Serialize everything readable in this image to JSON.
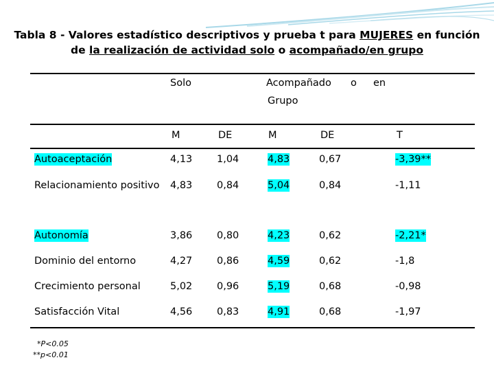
{
  "title": {
    "prefix": "Tabla 8 - Valores estadístico descriptivos y prueba t para ",
    "women": "MUJERES",
    "mid": " en función de ",
    "activity": "la realización de actividad solo",
    "o": " o ",
    "accompanied": "acompañado/en grupo"
  },
  "header": {
    "solo": "Solo",
    "acompanado": "Acompañado",
    "o": "o",
    "en": "en",
    "grupo": "Grupo",
    "cols": [
      "M",
      "DE",
      "M",
      "DE",
      "T"
    ]
  },
  "rows": [
    {
      "label": "Autoaceptación",
      "m1": "4,13",
      "de1": "1,04",
      "m2": "4,83",
      "de2": "0,67",
      "t": "-3,39**",
      "label_hl": true,
      "t_hl": true
    },
    {
      "label": "Relacionamiento positivo",
      "m1": "4,83",
      "de1": "0,84",
      "m2": "5,04",
      "de2": "0,84",
      "t": "-1,11",
      "label_hl": false,
      "t_hl": false
    },
    {
      "label": "Autonomía",
      "m1": "3,86",
      "de1": "0,80",
      "m2": "4,23",
      "de2": "0,62",
      "t": "-2,21*",
      "label_hl": true,
      "t_hl": true
    },
    {
      "label": "Dominio del entorno",
      "m1": "4,27",
      "de1": "0,86",
      "m2": "4,59",
      "de2": "0,62",
      "t": "-1,8",
      "label_hl": false,
      "t_hl": false
    },
    {
      "label": "Crecimiento personal",
      "m1": "5,02",
      "de1": "0,96",
      "m2": "5,19",
      "de2": "0,68",
      "t": "-0,98",
      "label_hl": false,
      "t_hl": false
    },
    {
      "label": "Satisfacción Vital",
      "m1": "4,56",
      "de1": "0,83",
      "m2": "4,91",
      "de2": "0,68",
      "t": "-1,97",
      "label_hl": false,
      "t_hl": false
    }
  ],
  "notes": [
    "*P<0.05",
    "**p<0.01"
  ],
  "colors": {
    "highlight": "#00ffff",
    "swoosh": "#a8d8e8"
  }
}
